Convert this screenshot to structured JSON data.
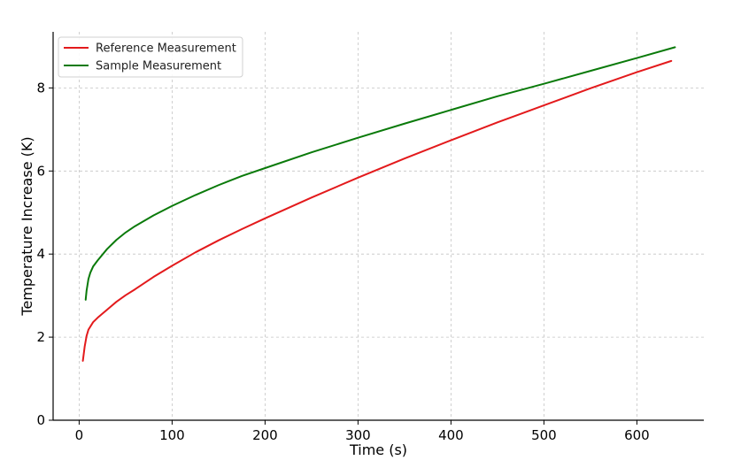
{
  "chart_data": {
    "type": "line",
    "title": "",
    "xlabel": "Time (s)",
    "ylabel": "Temperature Increase (K)",
    "xlim": [
      -28,
      672
    ],
    "ylim": [
      0,
      9.35
    ],
    "xticks": [
      0,
      100,
      200,
      300,
      400,
      500,
      600
    ],
    "yticks": [
      0,
      2,
      4,
      6,
      8
    ],
    "grid": true,
    "legend_position": "top-left",
    "series": [
      {
        "name": "Reference Measurement",
        "color": "#e31a1c",
        "x": [
          4,
          6,
          8,
          10,
          15,
          20,
          30,
          40,
          50,
          60,
          80,
          100,
          125,
          150,
          175,
          200,
          250,
          300,
          350,
          400,
          450,
          500,
          550,
          600,
          637
        ],
        "y": [
          1.43,
          1.78,
          2.03,
          2.18,
          2.36,
          2.47,
          2.66,
          2.85,
          3.01,
          3.15,
          3.45,
          3.72,
          4.04,
          4.33,
          4.6,
          4.86,
          5.36,
          5.84,
          6.3,
          6.74,
          7.17,
          7.58,
          7.99,
          8.38,
          8.65
        ]
      },
      {
        "name": "Sample Measurement",
        "color": "#0a7a0a",
        "x": [
          7,
          8,
          10,
          12,
          15,
          20,
          30,
          40,
          50,
          60,
          80,
          100,
          125,
          150,
          175,
          200,
          250,
          300,
          350,
          400,
          450,
          500,
          550,
          600,
          641
        ],
        "y": [
          2.9,
          3.12,
          3.4,
          3.55,
          3.7,
          3.85,
          4.12,
          4.34,
          4.52,
          4.67,
          4.93,
          5.16,
          5.42,
          5.66,
          5.88,
          6.07,
          6.45,
          6.8,
          7.14,
          7.47,
          7.8,
          8.1,
          8.41,
          8.72,
          8.98
        ]
      }
    ]
  }
}
